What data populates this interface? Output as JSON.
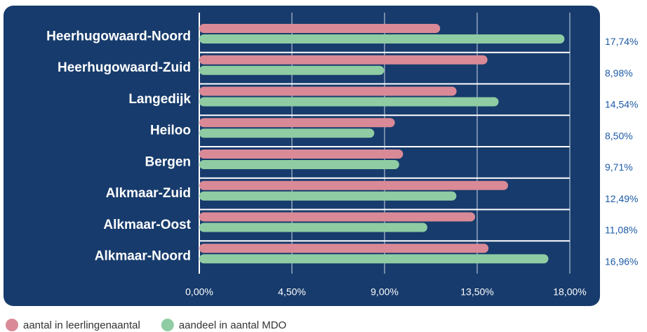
{
  "chart_data": {
    "type": "hbar",
    "categories": [
      "Heerhugowaard-Noord",
      "Heerhugowaard-Zuid",
      "Langedijk",
      "Heiloo",
      "Bergen",
      "Alkmaar-Zuid",
      "Alkmaar-Oost",
      "Alkmaar-Noord"
    ],
    "series": [
      {
        "name": "aantal in leerlingenaantal",
        "color": "#d98a96",
        "values": [
          11.7,
          14.0,
          12.5,
          9.5,
          9.9,
          15.0,
          13.4,
          14.05
        ]
      },
      {
        "name": "aandeel in aantal MDO",
        "color": "#8fcca3",
        "values": [
          17.74,
          8.98,
          14.54,
          8.5,
          9.71,
          12.49,
          11.08,
          16.96
        ],
        "value_labels": [
          "17,74%",
          "8,98%",
          "14,54%",
          "8,50%",
          "9,71%",
          "12,49%",
          "11,08%",
          "16,96%"
        ]
      }
    ],
    "xlim": [
      0,
      18
    ],
    "xticks": [
      {
        "value": 0,
        "label": "0,00%"
      },
      {
        "value": 4.5,
        "label": "4,50%"
      },
      {
        "value": 9,
        "label": "9,00%"
      },
      {
        "value": 13.5,
        "label": "13,50%"
      },
      {
        "value": 18,
        "label": "18,00%"
      }
    ],
    "grid": true
  }
}
